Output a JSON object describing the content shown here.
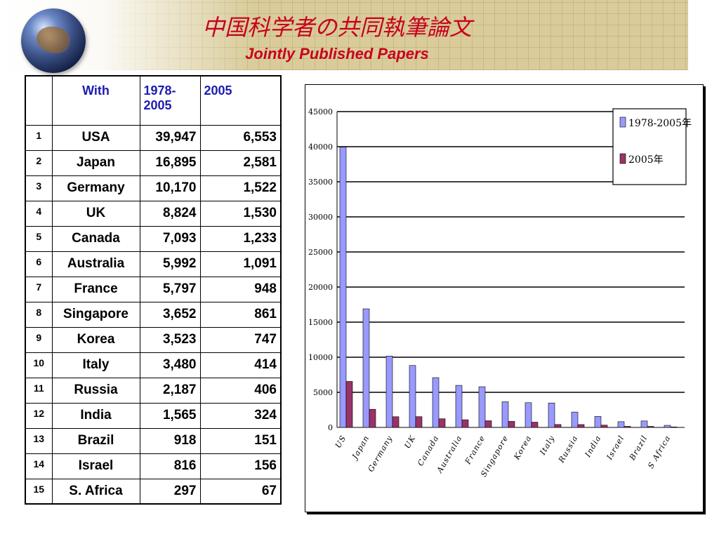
{
  "header": {
    "title_jp": "中国科学者の共同執筆論文",
    "title_en": "Jointly Published Papers"
  },
  "table": {
    "columns": [
      "",
      "With",
      "1978-2005",
      "2005"
    ],
    "rows": [
      {
        "rank": "1",
        "country": "USA",
        "total": "39,947",
        "y2005": "6,553"
      },
      {
        "rank": "2",
        "country": "Japan",
        "total": "16,895",
        "y2005": "2,581"
      },
      {
        "rank": "3",
        "country": "Germany",
        "total": "10,170",
        "y2005": "1,522"
      },
      {
        "rank": "4",
        "country": "UK",
        "total": "8,824",
        "y2005": "1,530"
      },
      {
        "rank": "5",
        "country": "Canada",
        "total": "7,093",
        "y2005": "1,233"
      },
      {
        "rank": "6",
        "country": "Australia",
        "total": "5,992",
        "y2005": "1,091"
      },
      {
        "rank": "7",
        "country": "France",
        "total": "5,797",
        "y2005": "948"
      },
      {
        "rank": "8",
        "country": "Singapore",
        "total": "3,652",
        "y2005": "861"
      },
      {
        "rank": "9",
        "country": "Korea",
        "total": "3,523",
        "y2005": "747"
      },
      {
        "rank": "10",
        "country": "Italy",
        "total": "3,480",
        "y2005": "414"
      },
      {
        "rank": "11",
        "country": "Russia",
        "total": "2,187",
        "y2005": "406"
      },
      {
        "rank": "12",
        "country": "India",
        "total": "1,565",
        "y2005": "324"
      },
      {
        "rank": "13",
        "country": "Brazil",
        "total": "918",
        "y2005": "151"
      },
      {
        "rank": "14",
        "country": "Israel",
        "total": "816",
        "y2005": "156"
      },
      {
        "rank": "15",
        "country": "S. Africa",
        "total": "297",
        "y2005": "67"
      }
    ]
  },
  "chart_data": {
    "type": "bar",
    "categories": [
      "US",
      "Japan",
      "Germany",
      "UK",
      "Canada",
      "Australia",
      "France",
      "Singapore",
      "Korea",
      "Italy",
      "Russia",
      "India",
      "Israel",
      "Brazil",
      "S Africa"
    ],
    "series": [
      {
        "name": "1978-2005年",
        "color": "#9999ff",
        "values": [
          39947,
          16895,
          10170,
          8824,
          7093,
          5992,
          5797,
          3652,
          3523,
          3480,
          2187,
          1565,
          816,
          918,
          297
        ]
      },
      {
        "name": "2005年",
        "color": "#993366",
        "values": [
          6553,
          2581,
          1522,
          1530,
          1233,
          1091,
          948,
          861,
          747,
          414,
          406,
          324,
          156,
          151,
          67
        ]
      }
    ],
    "ylim": [
      0,
      45000
    ],
    "yticks": [
      0,
      5000,
      10000,
      15000,
      20000,
      25000,
      30000,
      35000,
      40000,
      45000
    ],
    "grid": true,
    "legend_position": "top-right"
  }
}
